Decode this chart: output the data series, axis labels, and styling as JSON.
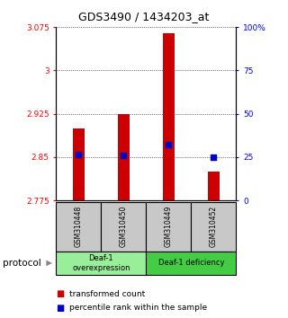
{
  "title": "GDS3490 / 1434203_at",
  "samples": [
    "GSM310448",
    "GSM310450",
    "GSM310449",
    "GSM310452"
  ],
  "transformed_counts": [
    2.9,
    2.925,
    3.065,
    2.825
  ],
  "percentile_ranks_pct": [
    26.5,
    26.0,
    32.0,
    25.0
  ],
  "bar_bottom": 2.775,
  "ylim": [
    2.775,
    3.075
  ],
  "y2lim": [
    0,
    100
  ],
  "yticks_left": [
    2.775,
    2.85,
    2.925,
    3.0,
    3.075
  ],
  "yticks_right": [
    0,
    25,
    50,
    75,
    100
  ],
  "ytick_labels_left": [
    "2.775",
    "2.85",
    "2.925",
    "3",
    "3.075"
  ],
  "ytick_labels_right": [
    "0",
    "25",
    "50",
    "75",
    "100%"
  ],
  "bar_color": "#cc0000",
  "dot_color": "#0000cc",
  "group1_label": "Deaf-1\noverexpression",
  "group1_color": "#99ee99",
  "group2_label": "Deaf-1 deficiency",
  "group2_color": "#44cc44",
  "group_box_color": "#c8c8c8",
  "protocol_text": "protocol",
  "legend_red_label": "transformed count",
  "legend_blue_label": "percentile rank within the sample",
  "bar_width": 0.25
}
